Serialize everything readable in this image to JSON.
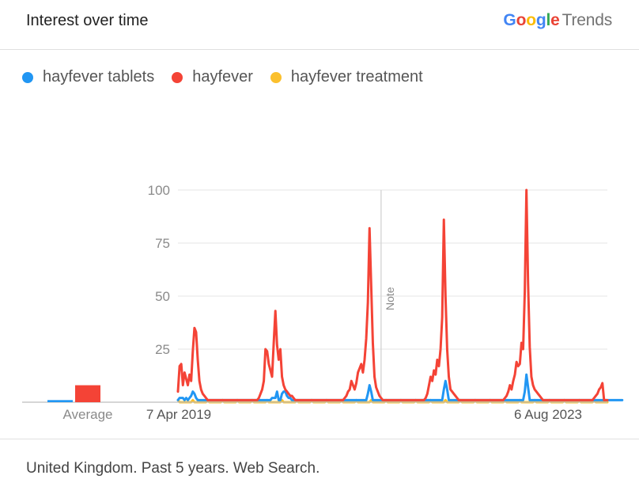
{
  "header": {
    "title": "Interest over time",
    "brand_google_letters": [
      {
        "ch": "G",
        "color": "#4285F4"
      },
      {
        "ch": "o",
        "color": "#EA4335"
      },
      {
        "ch": "o",
        "color": "#FBBC05"
      },
      {
        "ch": "g",
        "color": "#4285F4"
      },
      {
        "ch": "l",
        "color": "#34A853"
      },
      {
        "ch": "e",
        "color": "#EA4335"
      }
    ],
    "brand_trends": "Trends"
  },
  "legend": [
    {
      "label": "hayfever tablets",
      "color": "#2196F3"
    },
    {
      "label": "hayfever",
      "color": "#F44336"
    },
    {
      "label": "hayfever treatment",
      "color": "#FBC02D"
    }
  ],
  "footer": {
    "text": "United Kingdom. Past 5 years. Web Search."
  },
  "chart_data": {
    "type": "line",
    "ylim": [
      0,
      100
    ],
    "yticks": [
      25,
      50,
      75,
      100
    ],
    "xticks": [
      {
        "label": "7 Apr 2019",
        "index": 0
      },
      {
        "label": "6 Aug 2023",
        "index": 226
      }
    ],
    "note": {
      "label": "Note",
      "index": 123
    },
    "average_label": "Average",
    "averages": [
      {
        "name": "hayfever tablets",
        "value": 1
      },
      {
        "name": "hayfever",
        "value": 8
      },
      {
        "name": "hayfever treatment",
        "value": 0
      }
    ],
    "series": [
      {
        "name": "hayfever tablets",
        "color": "#2196F3",
        "values": [
          1,
          2,
          2,
          2,
          1,
          2,
          1,
          2,
          3,
          5,
          4,
          2,
          1,
          1,
          1,
          1,
          1,
          1,
          1,
          1,
          1,
          1,
          1,
          1,
          1,
          1,
          1,
          1,
          1,
          1,
          1,
          1,
          1,
          1,
          1,
          1,
          1,
          1,
          1,
          1,
          1,
          1,
          1,
          1,
          1,
          1,
          1,
          1,
          1,
          1,
          1,
          1,
          1,
          1,
          1,
          1,
          1,
          2,
          2,
          2,
          2,
          1,
          1,
          3,
          5,
          5,
          3,
          2,
          2,
          1,
          1,
          1,
          1,
          1,
          1,
          1,
          1,
          1,
          1,
          1,
          1,
          1,
          1,
          1,
          1,
          1,
          1,
          1,
          1,
          1,
          1,
          1,
          1,
          1,
          1,
          1,
          1,
          1,
          1,
          1,
          1,
          1,
          1,
          1,
          1,
          1,
          1,
          1,
          1,
          1,
          1,
          1,
          1,
          1,
          1,
          1,
          1,
          1,
          1,
          1,
          1,
          1,
          1,
          1,
          1,
          1,
          1,
          1,
          1,
          1,
          1,
          1,
          1,
          1,
          1,
          1,
          1,
          1,
          1,
          1,
          1,
          1,
          1,
          1,
          1,
          1,
          1,
          1,
          1,
          1,
          1,
          1,
          1,
          1,
          1,
          1,
          1,
          1,
          1,
          1,
          1,
          1,
          1,
          1,
          1,
          1,
          1,
          1,
          1,
          1,
          1,
          1,
          1,
          1,
          1,
          1,
          1,
          1,
          1,
          1,
          1,
          1,
          1,
          1,
          1,
          1,
          1,
          1,
          1,
          1,
          1,
          1,
          1,
          1,
          1,
          1,
          1,
          1,
          1,
          1,
          1,
          1,
          1,
          1,
          1,
          1,
          1,
          1,
          1,
          1,
          1,
          1,
          1,
          1,
          1,
          1,
          1,
          1,
          1,
          1,
          1,
          1,
          1,
          1,
          1,
          1,
          1,
          1,
          1,
          1,
          1,
          1,
          1,
          1,
          1,
          1,
          1,
          1,
          1,
          1,
          1,
          1,
          1,
          1,
          1,
          1,
          1,
          1,
          1,
          1,
          1,
          1,
          1,
          1,
          1,
          1,
          1,
          1,
          1,
          1,
          1,
          1,
          1,
          1,
          1,
          1,
          1,
          1,
          1,
          1
        ]
      },
      {
        "name": "hayfever",
        "color": "#F44336",
        "values": [
          0
        ]
      },
      {
        "name": "hayfever treatment",
        "color": "#FBC02D",
        "values": [
          0
        ]
      }
    ]
  }
}
